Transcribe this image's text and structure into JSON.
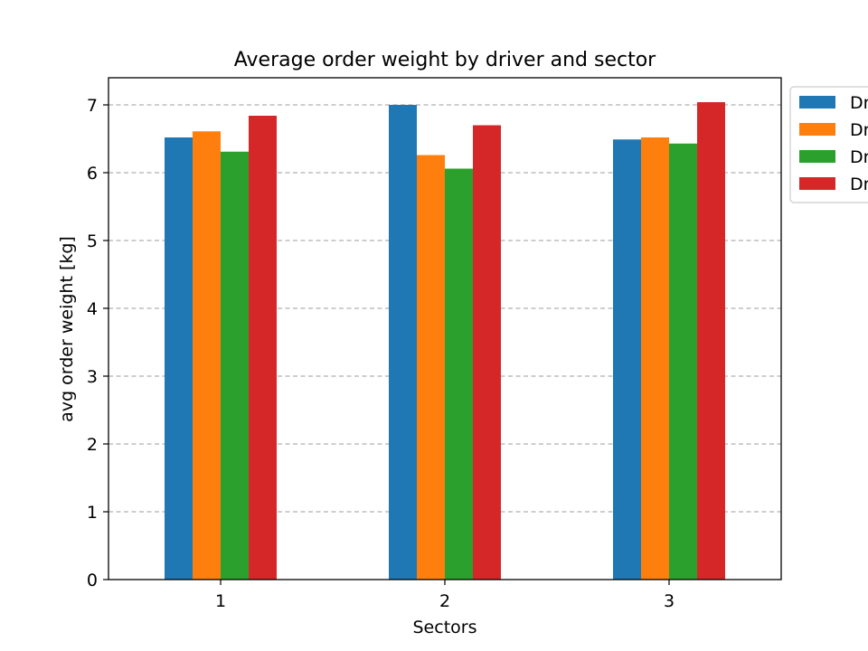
{
  "chart_data": {
    "type": "bar",
    "title": "Average order weight by driver and sector",
    "xlabel": "Sectors",
    "ylabel": "avg order weight [kg]",
    "categories": [
      "1",
      "2",
      "3"
    ],
    "ylim": [
      0,
      7.4
    ],
    "yticks": [
      "0",
      "1",
      "2",
      "3",
      "4",
      "5",
      "6",
      "7"
    ],
    "grid": "horizontal dashed",
    "legend_position": "outside top-right (clipped)",
    "series": [
      {
        "name": "Dr",
        "color": "#1f77b4",
        "values": [
          6.52,
          7.0,
          6.49
        ]
      },
      {
        "name": "Dr",
        "color": "#ff7f0e",
        "values": [
          6.61,
          6.26,
          6.52
        ]
      },
      {
        "name": "Dr",
        "color": "#2ca02c",
        "values": [
          6.31,
          6.06,
          6.43
        ]
      },
      {
        "name": "Dr",
        "color": "#d62728",
        "values": [
          6.84,
          6.7,
          7.04
        ]
      }
    ]
  }
}
